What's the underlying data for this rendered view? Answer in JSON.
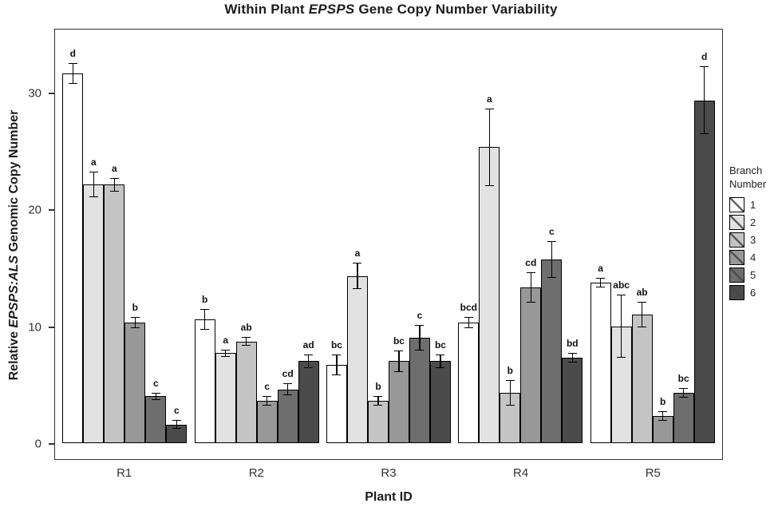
{
  "title": {
    "pre": "Within Plant ",
    "italic": "EPSPS",
    "post": " Gene Copy Number Variability"
  },
  "y_axis": {
    "pre": "Relative ",
    "italic": "EPSPS:ALS",
    "post": " Genomic Copy Number"
  },
  "x_axis": {
    "label": "Plant ID"
  },
  "legend": {
    "title_line1": "Branch",
    "title_line2": "Number"
  },
  "chart_data": {
    "type": "bar",
    "title": "Within Plant EPSPS Gene Copy Number Variability",
    "xlabel": "Plant ID",
    "ylabel": "Relative EPSPS:ALS Genomic Copy Number",
    "ylim": [
      0,
      35.5
    ],
    "axis_max": 35.5,
    "yticks": [
      0,
      10,
      20,
      30
    ],
    "grid": false,
    "legend_position": "right",
    "legend_title": "Branch Number",
    "categories": [
      "R1",
      "R2",
      "R3",
      "R4",
      "R5"
    ],
    "series": [
      {
        "name": "1",
        "color": "#ffffff",
        "values": [
          31.6,
          10.6,
          6.7,
          10.3,
          13.7
        ],
        "errors": [
          0.9,
          0.9,
          0.9,
          0.5,
          0.4
        ],
        "letters": [
          "d",
          "b",
          "bc",
          "bcd",
          "a"
        ]
      },
      {
        "name": "2",
        "color": "#e2e2e2",
        "values": [
          22.1,
          7.7,
          14.3,
          25.3,
          10.0
        ],
        "errors": [
          1.1,
          0.3,
          1.1,
          3.3,
          2.7
        ],
        "letters": [
          "a",
          "a",
          "a",
          "a",
          "abc"
        ]
      },
      {
        "name": "3",
        "color": "#c4c4c4",
        "values": [
          22.1,
          8.7,
          3.6,
          4.3,
          11.0
        ],
        "errors": [
          0.6,
          0.4,
          0.4,
          1.1,
          1.1
        ],
        "letters": [
          "a",
          "ab",
          "b",
          "b",
          "ab"
        ]
      },
      {
        "name": "4",
        "color": "#989898",
        "values": [
          10.3,
          3.6,
          7.0,
          13.3,
          2.3
        ],
        "errors": [
          0.5,
          0.4,
          0.9,
          1.3,
          0.4
        ],
        "letters": [
          "b",
          "c",
          "bc",
          "cd",
          "b"
        ]
      },
      {
        "name": "5",
        "color": "#6e6e6e",
        "values": [
          4.0,
          4.6,
          9.0,
          15.7,
          4.3
        ],
        "errors": [
          0.3,
          0.5,
          1.1,
          1.6,
          0.4
        ],
        "letters": [
          "c",
          "cd",
          "c",
          "c",
          "bc"
        ]
      },
      {
        "name": "6",
        "color": "#4b4b4b",
        "values": [
          1.6,
          7.0,
          7.0,
          7.3,
          29.3
        ],
        "errors": [
          0.4,
          0.6,
          0.6,
          0.4,
          2.9
        ],
        "letters": [
          "c",
          "ad",
          "bc",
          "bd",
          "d"
        ]
      }
    ]
  }
}
